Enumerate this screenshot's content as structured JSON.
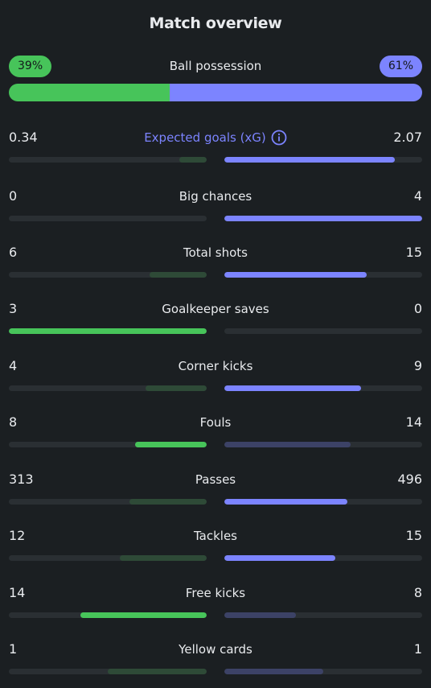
{
  "title": "Match overview",
  "possession": {
    "label": "Ball possession",
    "home": "39%",
    "away": "61%",
    "home_fraction": 0.39
  },
  "colors": {
    "home": "#47c45a",
    "home_dim": "#2e4a37",
    "away": "#7c84ff",
    "away_dim": "#3c4266",
    "track": "#2a2f33",
    "background": "#1b1f22"
  },
  "stats": [
    {
      "label": "Expected goals (xG)",
      "home": "0.34",
      "away": "2.07",
      "home_level": 0.14,
      "away_level": 0.86,
      "leader": "away",
      "info_icon": "info-icon"
    },
    {
      "label": "Big chances",
      "home": "0",
      "away": "4",
      "home_level": 0.0,
      "away_level": 1.0,
      "leader": "away"
    },
    {
      "label": "Total shots",
      "home": "6",
      "away": "15",
      "home_level": 0.29,
      "away_level": 0.72,
      "leader": "away"
    },
    {
      "label": "Goalkeeper saves",
      "home": "3",
      "away": "0",
      "home_level": 1.0,
      "away_level": 0.0,
      "leader": "home"
    },
    {
      "label": "Corner kicks",
      "home": "4",
      "away": "9",
      "home_level": 0.31,
      "away_level": 0.69,
      "leader": "away"
    },
    {
      "label": "Fouls",
      "home": "8",
      "away": "14",
      "home_level": 0.36,
      "away_level": 0.64,
      "leader": "home"
    },
    {
      "label": "Passes",
      "home": "313",
      "away": "496",
      "home_level": 0.39,
      "away_level": 0.62,
      "leader": "away"
    },
    {
      "label": "Tackles",
      "home": "12",
      "away": "15",
      "home_level": 0.44,
      "away_level": 0.56,
      "leader": "away"
    },
    {
      "label": "Free kicks",
      "home": "14",
      "away": "8",
      "home_level": 0.64,
      "away_level": 0.36,
      "leader": "home"
    },
    {
      "label": "Yellow cards",
      "home": "1",
      "away": "1",
      "home_level": 0.5,
      "away_level": 0.5,
      "leader": "none"
    }
  ]
}
